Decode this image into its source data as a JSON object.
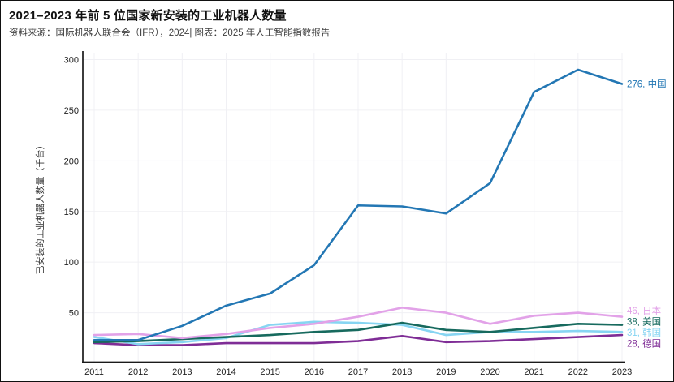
{
  "title": "2021–2023 年前 5 位国家新安装的工业机器人数量",
  "subtitle": "资料来源：国际机器人联合会（IFR），2024| 图表：2025 年人工智能指数报告",
  "chart_data": {
    "type": "line",
    "title": "2021–2023 年前 5 位国家新安装的工业机器人数量",
    "source_note": "资料来源：国际机器人联合会（IFR），2024| 图表：2025 年人工智能指数报告",
    "xlabel": "",
    "ylabel": "已安装的工业机器人数量（千台）",
    "ylim": [
      0,
      300
    ],
    "yticks": [
      50,
      100,
      150,
      200,
      250,
      300
    ],
    "grid": true,
    "legend_position": "right-end-labels",
    "x": [
      2011,
      2012,
      2013,
      2014,
      2015,
      2016,
      2017,
      2018,
      2019,
      2020,
      2021,
      2022,
      2023
    ],
    "series": [
      {
        "id": "china",
        "name": "中国",
        "color": "#2377b4",
        "end_label": "276, 中国",
        "values": [
          23,
          23,
          37,
          57,
          69,
          97,
          156,
          155,
          148,
          178,
          268,
          290,
          276
        ]
      },
      {
        "id": "japan",
        "name": "日本",
        "color": "#e2a2e8",
        "end_label": "46, 日本",
        "values": [
          28,
          29,
          25,
          29,
          35,
          39,
          46,
          55,
          50,
          39,
          47,
          50,
          46
        ]
      },
      {
        "id": "usa",
        "name": "美国",
        "color": "#176a5e",
        "end_label": "38, 美国",
        "values": [
          21,
          22,
          24,
          26,
          28,
          31,
          33,
          40,
          33,
          31,
          35,
          39,
          38
        ]
      },
      {
        "id": "korea",
        "name": "韩国",
        "color": "#87d5f2",
        "end_label": "31, 韩国",
        "values": [
          26,
          19,
          21,
          25,
          38,
          41,
          40,
          38,
          28,
          31,
          31,
          32,
          31
        ]
      },
      {
        "id": "germany",
        "name": "德国",
        "color": "#7f2d96",
        "end_label": "28, 德国",
        "values": [
          20,
          18,
          18,
          20,
          20,
          20,
          22,
          27,
          21,
          22,
          24,
          26,
          28
        ]
      }
    ]
  }
}
